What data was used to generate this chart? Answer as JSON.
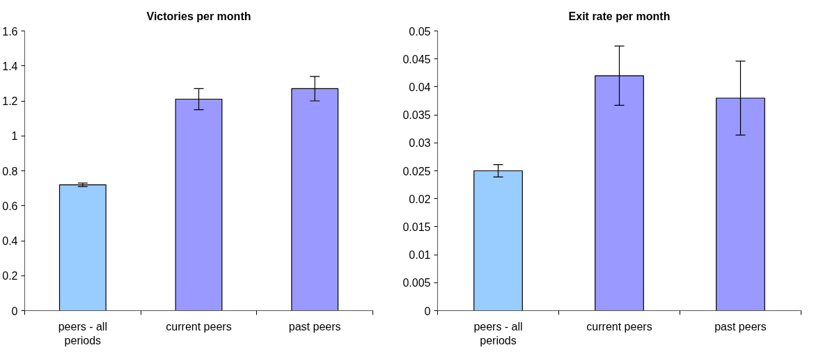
{
  "chart_data": [
    {
      "type": "bar",
      "title": "Victories per month",
      "categories": [
        "peers - all periods",
        "current peers",
        "past peers"
      ],
      "values": [
        0.72,
        1.21,
        1.27
      ],
      "errors": [
        0.01,
        0.06,
        0.07
      ],
      "colors": [
        "#99ccff",
        "#9999ff",
        "#9999ff"
      ],
      "ylim": [
        0,
        1.6
      ],
      "yticks": [
        0,
        0.2,
        0.4,
        0.6,
        0.8,
        1,
        1.2,
        1.4,
        1.6
      ],
      "grid": false
    },
    {
      "type": "bar",
      "title": "Exit rate per month",
      "categories": [
        "peers - all periods",
        "current peers",
        "past peers"
      ],
      "values": [
        0.025,
        0.042,
        0.038
      ],
      "errors": [
        0.0011,
        0.0053,
        0.0066
      ],
      "colors": [
        "#99ccff",
        "#9999ff",
        "#9999ff"
      ],
      "ylim": [
        0,
        0.05
      ],
      "yticks": [
        0,
        0.005,
        0.01,
        0.015,
        0.02,
        0.025,
        0.03,
        0.035,
        0.04,
        0.045,
        0.05
      ],
      "grid": false
    }
  ]
}
